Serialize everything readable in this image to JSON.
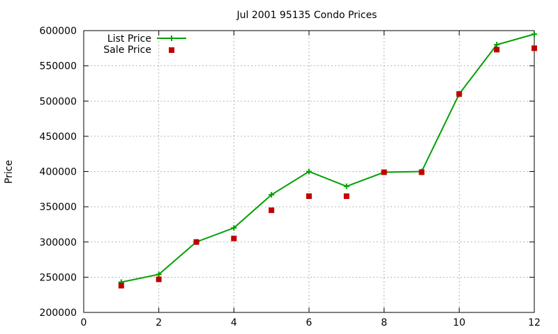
{
  "chart_data": {
    "type": "line",
    "title": "Jul 2001 95135 Condo Prices",
    "xlabel": "",
    "ylabel": "Price",
    "xlim": [
      0,
      12
    ],
    "ylim": [
      200000,
      600000
    ],
    "x_ticks": [
      "0",
      "2",
      "4",
      "6",
      "8",
      "10",
      "12"
    ],
    "x_tick_values": [
      0,
      2,
      4,
      6,
      8,
      10,
      12
    ],
    "y_ticks": [
      "200000",
      "250000",
      "300000",
      "350000",
      "400000",
      "450000",
      "500000",
      "550000",
      "600000"
    ],
    "y_tick_values": [
      200000,
      250000,
      300000,
      350000,
      400000,
      450000,
      500000,
      550000,
      600000
    ],
    "grid": true,
    "legend_position": "top-left",
    "series": [
      {
        "name": "List Price",
        "style": "line-with-plus",
        "color": "#00a000",
        "x": [
          1,
          2,
          3,
          4,
          5,
          6,
          7,
          8,
          9,
          10,
          11,
          12
        ],
        "y": [
          243000,
          254000,
          300000,
          320000,
          367000,
          400000,
          379000,
          399000,
          400000,
          510000,
          580000,
          595000
        ]
      },
      {
        "name": "Sale Price",
        "style": "points-square",
        "color": "#c00000",
        "x": [
          1,
          2,
          3,
          4,
          5,
          6,
          7,
          8,
          9,
          10,
          11,
          12
        ],
        "y": [
          238000,
          247000,
          300000,
          305000,
          345000,
          365000,
          365000,
          399000,
          399000,
          510000,
          573000,
          575000
        ]
      }
    ]
  }
}
